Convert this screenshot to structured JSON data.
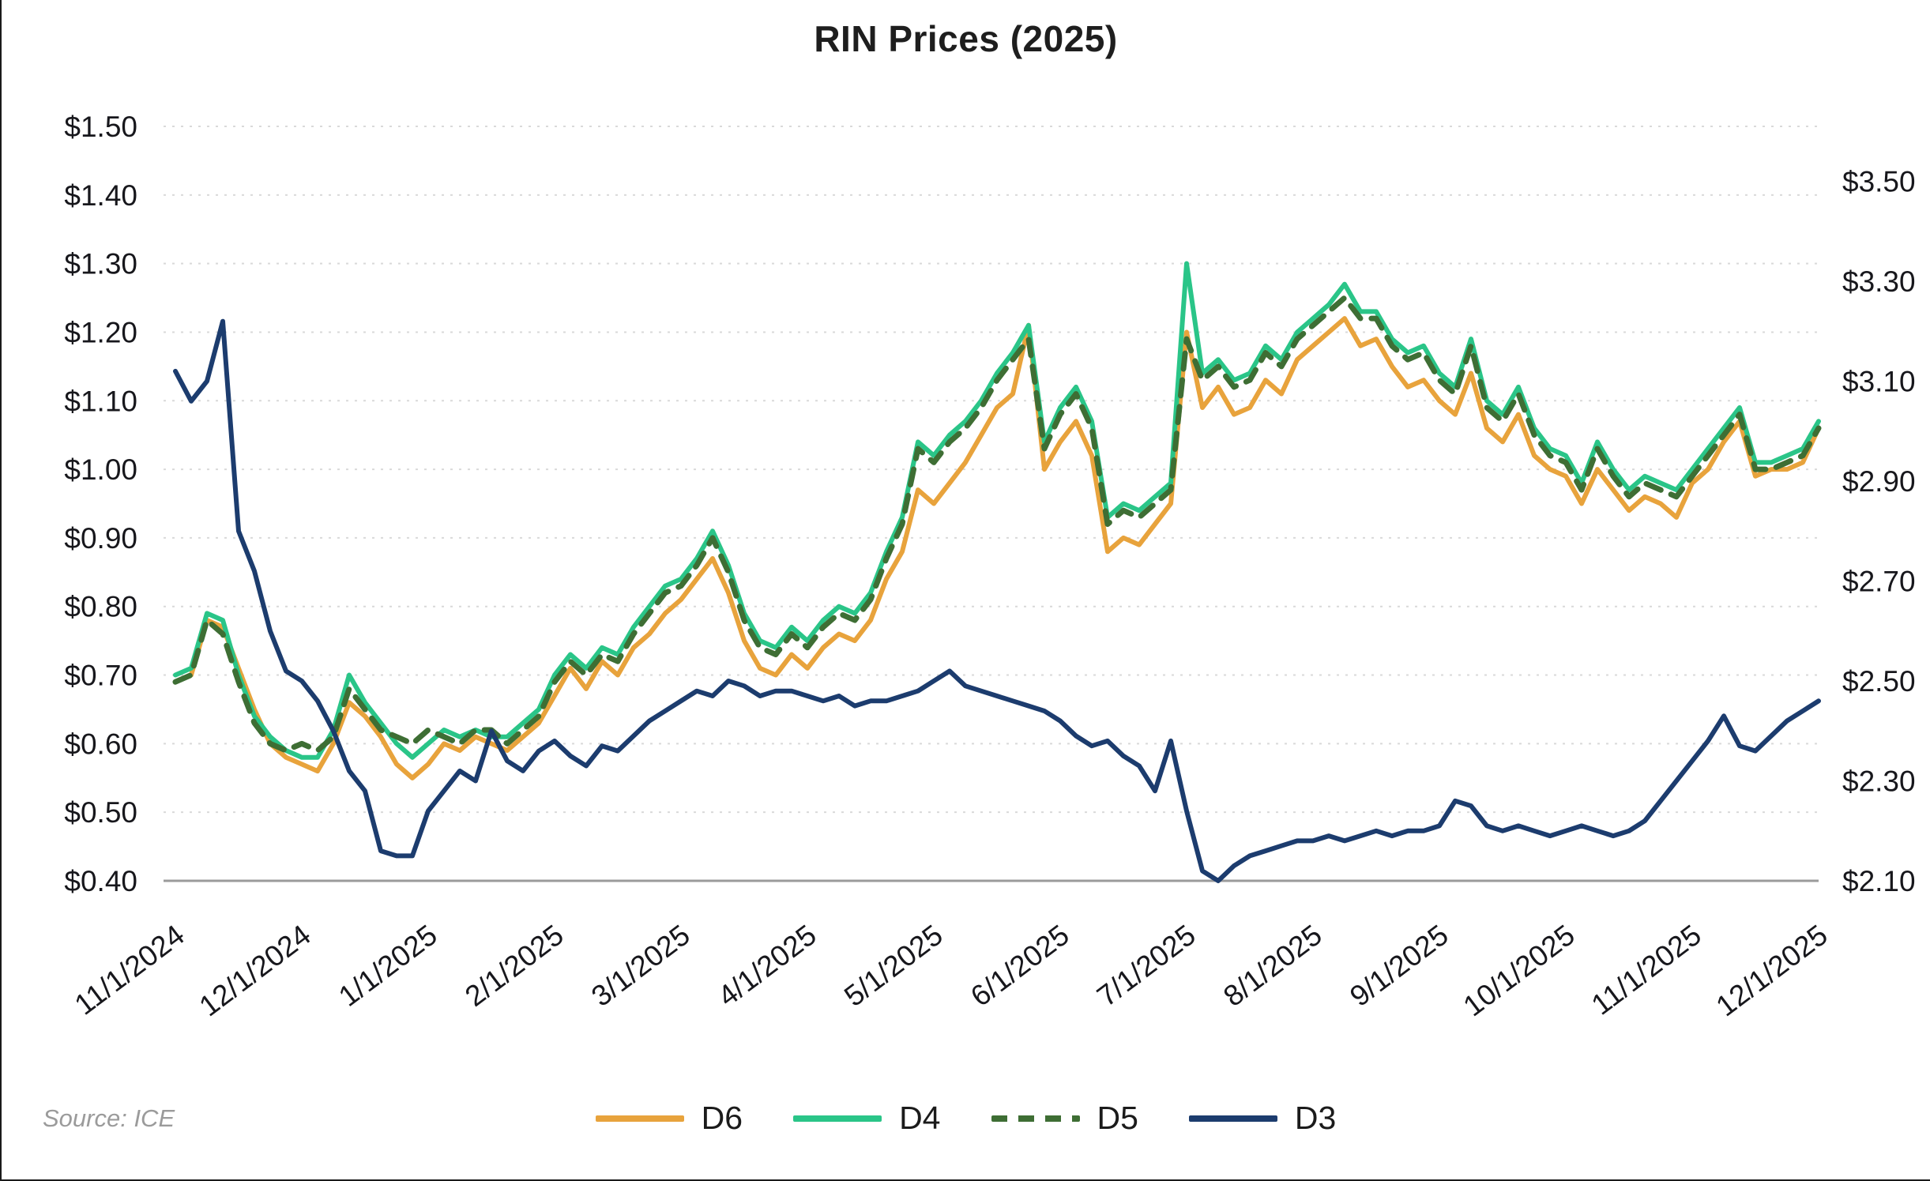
{
  "chart_data": {
    "type": "line",
    "title": "RIN Prices (2025)",
    "source": "Source: ICE",
    "grid": "horizontal-dotted",
    "legend_position": "bottom-center",
    "x_tick_labels": [
      "11/1/2024",
      "12/1/2024",
      "1/1/2025",
      "2/1/2025",
      "3/1/2025",
      "4/1/2025",
      "5/1/2025",
      "6/1/2025",
      "7/1/2025",
      "8/1/2025",
      "9/1/2025",
      "10/1/2025",
      "11/1/2025",
      "12/1/2025"
    ],
    "left_axis": {
      "min": 0.4,
      "max": 1.5,
      "tick_values": [
        0.4,
        0.5,
        0.6,
        0.7,
        0.8,
        0.9,
        1.0,
        1.1,
        1.2,
        1.3,
        1.4,
        1.5
      ],
      "tick_labels": [
        "$0.40",
        "$0.50",
        "$0.60",
        "$0.70",
        "$0.80",
        "$0.90",
        "$1.00",
        "$1.10",
        "$1.20",
        "$1.30",
        "$1.40",
        "$1.50"
      ]
    },
    "right_axis": {
      "min": 2.1,
      "max": 3.61,
      "tick_values": [
        2.1,
        2.3,
        2.5,
        2.7,
        2.9,
        3.1,
        3.3,
        3.5
      ],
      "tick_labels": [
        "$2.10",
        "$2.30",
        "$2.50",
        "$2.70",
        "$2.90",
        "$3.10",
        "$3.30",
        "$3.50"
      ]
    },
    "series": [
      {
        "name": "D6",
        "color": "#E8A33C",
        "axis": "left",
        "style": "solid",
        "width": 6,
        "values": [
          0.69,
          0.7,
          0.78,
          0.77,
          0.71,
          0.65,
          0.6,
          0.58,
          0.57,
          0.56,
          0.6,
          0.66,
          0.64,
          0.61,
          0.57,
          0.55,
          0.57,
          0.6,
          0.59,
          0.61,
          0.6,
          0.59,
          0.61,
          0.63,
          0.67,
          0.71,
          0.68,
          0.72,
          0.7,
          0.74,
          0.76,
          0.79,
          0.81,
          0.84,
          0.87,
          0.82,
          0.75,
          0.71,
          0.7,
          0.73,
          0.71,
          0.74,
          0.76,
          0.75,
          0.78,
          0.84,
          0.88,
          0.97,
          0.95,
          0.98,
          1.01,
          1.05,
          1.09,
          1.11,
          1.21,
          1.0,
          1.04,
          1.07,
          1.02,
          0.88,
          0.9,
          0.89,
          0.92,
          0.95,
          1.2,
          1.09,
          1.12,
          1.08,
          1.09,
          1.13,
          1.11,
          1.16,
          1.18,
          1.2,
          1.22,
          1.18,
          1.19,
          1.15,
          1.12,
          1.13,
          1.1,
          1.08,
          1.14,
          1.06,
          1.04,
          1.08,
          1.02,
          1.0,
          0.99,
          0.95,
          1.0,
          0.97,
          0.94,
          0.96,
          0.95,
          0.93,
          0.98,
          1.0,
          1.04,
          1.07,
          0.99,
          1.0,
          1.0,
          1.01,
          1.06
        ]
      },
      {
        "name": "D4",
        "color": "#2AC588",
        "axis": "left",
        "style": "solid",
        "width": 6,
        "values": [
          0.7,
          0.71,
          0.79,
          0.78,
          0.7,
          0.64,
          0.61,
          0.59,
          0.58,
          0.58,
          0.62,
          0.7,
          0.66,
          0.63,
          0.6,
          0.58,
          0.6,
          0.62,
          0.61,
          0.62,
          0.61,
          0.61,
          0.63,
          0.65,
          0.7,
          0.73,
          0.71,
          0.74,
          0.73,
          0.77,
          0.8,
          0.83,
          0.84,
          0.87,
          0.91,
          0.86,
          0.79,
          0.75,
          0.74,
          0.77,
          0.75,
          0.78,
          0.8,
          0.79,
          0.82,
          0.88,
          0.93,
          1.04,
          1.02,
          1.05,
          1.07,
          1.1,
          1.14,
          1.17,
          1.21,
          1.04,
          1.09,
          1.12,
          1.07,
          0.93,
          0.95,
          0.94,
          0.96,
          0.98,
          1.3,
          1.14,
          1.16,
          1.13,
          1.14,
          1.18,
          1.16,
          1.2,
          1.22,
          1.24,
          1.27,
          1.23,
          1.23,
          1.19,
          1.17,
          1.18,
          1.14,
          1.12,
          1.19,
          1.1,
          1.08,
          1.12,
          1.06,
          1.03,
          1.02,
          0.98,
          1.04,
          1.0,
          0.97,
          0.99,
          0.98,
          0.97,
          1.0,
          1.03,
          1.06,
          1.09,
          1.01,
          1.01,
          1.02,
          1.03,
          1.07
        ]
      },
      {
        "name": "D5",
        "color": "#3E6E34",
        "axis": "left",
        "style": "dashed",
        "width": 7,
        "values": [
          0.69,
          0.7,
          0.78,
          0.76,
          0.69,
          0.63,
          0.6,
          0.59,
          0.6,
          0.59,
          0.61,
          0.68,
          0.65,
          0.62,
          0.61,
          0.6,
          0.62,
          0.61,
          0.6,
          0.62,
          0.62,
          0.6,
          0.62,
          0.64,
          0.69,
          0.72,
          0.7,
          0.73,
          0.72,
          0.76,
          0.79,
          0.82,
          0.83,
          0.86,
          0.9,
          0.85,
          0.78,
          0.74,
          0.73,
          0.76,
          0.74,
          0.77,
          0.79,
          0.78,
          0.81,
          0.87,
          0.92,
          1.03,
          1.01,
          1.04,
          1.06,
          1.09,
          1.13,
          1.16,
          1.19,
          1.03,
          1.08,
          1.11,
          1.06,
          0.92,
          0.94,
          0.93,
          0.95,
          0.97,
          1.19,
          1.13,
          1.15,
          1.12,
          1.13,
          1.17,
          1.15,
          1.19,
          1.21,
          1.23,
          1.25,
          1.22,
          1.22,
          1.18,
          1.16,
          1.17,
          1.13,
          1.11,
          1.18,
          1.09,
          1.07,
          1.11,
          1.05,
          1.02,
          1.01,
          0.97,
          1.03,
          0.99,
          0.96,
          0.98,
          0.97,
          0.96,
          0.99,
          1.02,
          1.05,
          1.08,
          1.0,
          1.0,
          1.01,
          1.02,
          1.06
        ]
      },
      {
        "name": "D3",
        "color": "#1C3C6E",
        "axis": "right",
        "style": "solid",
        "width": 6,
        "values": [
          3.12,
          3.06,
          3.1,
          3.22,
          2.8,
          2.72,
          2.6,
          2.52,
          2.5,
          2.46,
          2.4,
          2.32,
          2.28,
          2.16,
          2.15,
          2.15,
          2.24,
          2.28,
          2.32,
          2.3,
          2.4,
          2.34,
          2.32,
          2.36,
          2.38,
          2.35,
          2.33,
          2.37,
          2.36,
          2.39,
          2.42,
          2.44,
          2.46,
          2.48,
          2.47,
          2.5,
          2.49,
          2.47,
          2.48,
          2.48,
          2.47,
          2.46,
          2.47,
          2.45,
          2.46,
          2.46,
          2.47,
          2.48,
          2.5,
          2.52,
          2.49,
          2.48,
          2.47,
          2.46,
          2.45,
          2.44,
          2.42,
          2.39,
          2.37,
          2.38,
          2.35,
          2.33,
          2.28,
          2.38,
          2.24,
          2.12,
          2.1,
          2.13,
          2.15,
          2.16,
          2.17,
          2.18,
          2.18,
          2.19,
          2.18,
          2.19,
          2.2,
          2.19,
          2.2,
          2.2,
          2.21,
          2.26,
          2.25,
          2.21,
          2.2,
          2.21,
          2.2,
          2.19,
          2.2,
          2.21,
          2.2,
          2.19,
          2.2,
          2.22,
          2.26,
          2.3,
          2.34,
          2.38,
          2.43,
          2.37,
          2.36,
          2.39,
          2.42,
          2.44,
          2.46
        ]
      }
    ]
  }
}
